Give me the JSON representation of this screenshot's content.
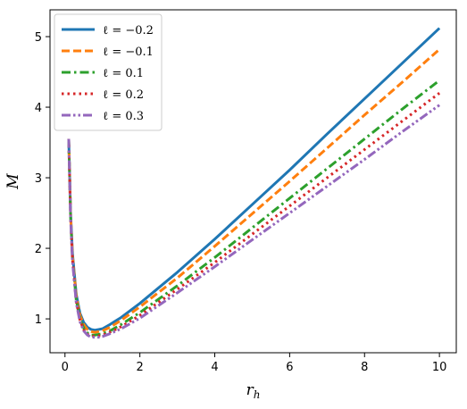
{
  "chart_data": {
    "type": "line",
    "xlabel": "r_h",
    "ylabel": "M",
    "xlim": [
      -0.4,
      10.45
    ],
    "ylim": [
      0.52,
      5.38
    ],
    "x_ticks": [
      0,
      2,
      4,
      6,
      8,
      10
    ],
    "y_ticks": [
      1,
      2,
      3,
      4,
      5
    ],
    "x_tick_labels": [
      "0",
      "2",
      "4",
      "6",
      "8",
      "10"
    ],
    "y_tick_labels": [
      "1",
      "2",
      "3",
      "4",
      "5"
    ],
    "grid": false,
    "legend_position": "top-left",
    "series": [
      {
        "name": "ℓ = −0.2",
        "color": "#1f77b4",
        "dash": "solid",
        "x": [
          0.1,
          0.15,
          0.2,
          0.3,
          0.4,
          0.5,
          0.6,
          0.7,
          0.8,
          0.9,
          1.0,
          1.2,
          1.5,
          2,
          3,
          4,
          5,
          6,
          7,
          8,
          9,
          10
        ],
        "y": [
          3.55,
          2.5,
          1.93,
          1.35,
          1.08,
          0.95,
          0.88,
          0.85,
          0.84,
          0.85,
          0.86,
          0.92,
          1.02,
          1.22,
          1.66,
          2.13,
          2.62,
          3.11,
          3.62,
          4.12,
          4.62,
          5.12
        ]
      },
      {
        "name": "ℓ = −0.1",
        "color": "#ff7f0e",
        "dash": "dashed",
        "x": [
          0.1,
          0.15,
          0.2,
          0.3,
          0.4,
          0.5,
          0.6,
          0.7,
          0.8,
          0.9,
          1.0,
          1.2,
          1.5,
          2,
          3,
          4,
          5,
          6,
          7,
          8,
          9,
          10
        ],
        "y": [
          3.55,
          2.48,
          1.9,
          1.32,
          1.05,
          0.92,
          0.85,
          0.82,
          0.81,
          0.82,
          0.83,
          0.88,
          0.98,
          1.17,
          1.58,
          2.03,
          2.49,
          2.95,
          3.42,
          3.89,
          4.35,
          4.82
        ]
      },
      {
        "name": "ℓ = 0.1",
        "color": "#2ca02c",
        "dash": "dashdot",
        "x": [
          0.1,
          0.15,
          0.2,
          0.3,
          0.4,
          0.5,
          0.6,
          0.7,
          0.8,
          0.9,
          1.0,
          1.2,
          1.5,
          2,
          3,
          4,
          5,
          6,
          7,
          8,
          9,
          10
        ],
        "y": [
          3.55,
          2.45,
          1.86,
          1.27,
          1.0,
          0.87,
          0.8,
          0.77,
          0.77,
          0.78,
          0.79,
          0.83,
          0.92,
          1.09,
          1.47,
          1.87,
          2.29,
          2.71,
          3.13,
          3.55,
          3.97,
          4.38
        ]
      },
      {
        "name": "ℓ = 0.2",
        "color": "#d62728",
        "dash": "dotted",
        "x": [
          0.1,
          0.15,
          0.2,
          0.3,
          0.4,
          0.5,
          0.6,
          0.7,
          0.8,
          0.9,
          1.0,
          1.2,
          1.5,
          2,
          3,
          4,
          5,
          6,
          7,
          8,
          9,
          10
        ],
        "y": [
          3.55,
          2.44,
          1.84,
          1.25,
          0.98,
          0.85,
          0.78,
          0.76,
          0.75,
          0.76,
          0.77,
          0.81,
          0.89,
          1.05,
          1.42,
          1.8,
          2.2,
          2.6,
          3.0,
          3.4,
          3.8,
          4.2
        ]
      },
      {
        "name": "ℓ = 0.3",
        "color": "#9467bd",
        "dash": "dashdotdot",
        "x": [
          0.1,
          0.15,
          0.2,
          0.3,
          0.4,
          0.5,
          0.6,
          0.7,
          0.8,
          0.9,
          1.0,
          1.2,
          1.5,
          2,
          3,
          4,
          5,
          6,
          7,
          8,
          9,
          10
        ],
        "y": [
          3.55,
          2.42,
          1.82,
          1.23,
          0.96,
          0.83,
          0.77,
          0.74,
          0.74,
          0.74,
          0.75,
          0.79,
          0.86,
          1.01,
          1.37,
          1.74,
          2.12,
          2.5,
          2.88,
          3.26,
          3.65,
          4.03
        ]
      }
    ]
  }
}
